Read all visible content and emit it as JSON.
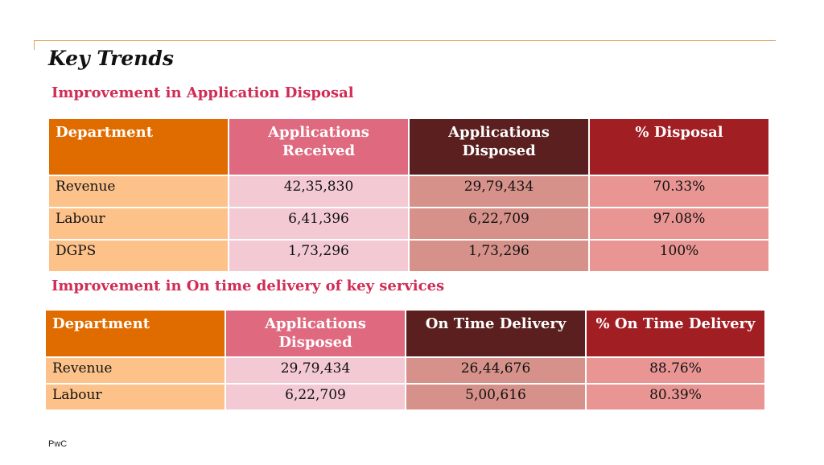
{
  "title": "Key Trends",
  "section1": {
    "title": "Improvement in Application Disposal",
    "headers": [
      "Department",
      "Applications Received",
      "Applications Disposed",
      "% Disposal"
    ],
    "rows": [
      [
        "Revenue",
        "42,35,830",
        "29,79,434",
        "70.33%"
      ],
      [
        "Labour",
        "6,41,396",
        "6,22,709",
        "97.08%"
      ],
      [
        "DGPS",
        "1,73,296",
        "1,73,296",
        "100%"
      ]
    ]
  },
  "section2": {
    "title": "Improvement in On time delivery of key services",
    "headers": [
      "Department",
      "Applications Disposed",
      "On Time Delivery",
      "% On Time Delivery"
    ],
    "rows": [
      [
        "Revenue",
        "29,79,434",
        "26,44,676",
        "88.76%"
      ],
      [
        "Labour",
        "6,22,709",
        "5,00,616",
        "80.39%"
      ]
    ]
  },
  "footer": "PwC",
  "colors": {
    "accent_line": "#e0a060",
    "section_title": "#d02c55",
    "col_department_header": "#e06c00",
    "col_received_header": "#df6a80",
    "col_disposed_header": "#5b1f1f",
    "col_percent_header": "#a11e23",
    "col_department_cell": "#fdc28a",
    "col_received_cell": "#f3c9d3",
    "col_disposed_cell": "#d6918a",
    "col_percent_cell": "#e99593"
  }
}
